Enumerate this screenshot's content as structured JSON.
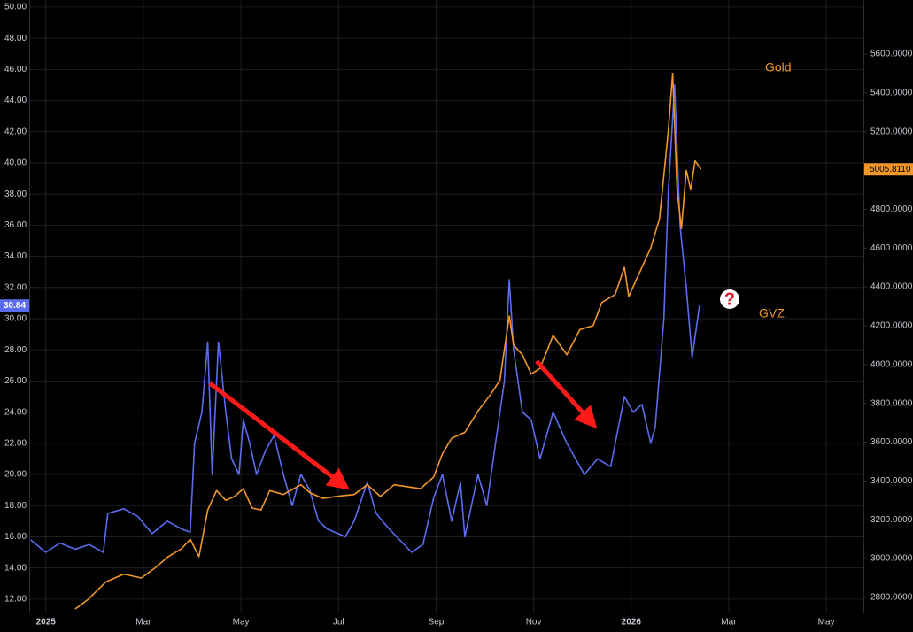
{
  "chart_data": {
    "type": "line",
    "annotations": {
      "gold_label": "Gold",
      "gvz_label": "GVZ",
      "question_mark": "?",
      "gvz_last": "30.84",
      "gold_last": "5005.8110"
    },
    "xlim": [
      -0.34,
      16.76
    ],
    "xticks": [
      {
        "value": 0,
        "label": "2025"
      },
      {
        "value": 2,
        "label": "Mar"
      },
      {
        "value": 4,
        "label": "May"
      },
      {
        "value": 6,
        "label": "Jul"
      },
      {
        "value": 8,
        "label": "Sep"
      },
      {
        "value": 10,
        "label": "Nov"
      },
      {
        "value": 12,
        "label": "2026"
      },
      {
        "value": 14,
        "label": "Mar"
      },
      {
        "value": 16,
        "label": "May"
      }
    ],
    "ylim": [
      11.14,
      50.45
    ],
    "yticks": [
      {
        "value": 12,
        "label": "12.00"
      },
      {
        "value": 14,
        "label": "14.00"
      },
      {
        "value": 16,
        "label": "16.00"
      },
      {
        "value": 18,
        "label": "18.00"
      },
      {
        "value": 20,
        "label": "20.00"
      },
      {
        "value": 22,
        "label": "22.00"
      },
      {
        "value": 24,
        "label": "24.00"
      },
      {
        "value": 26,
        "label": "26.00"
      },
      {
        "value": 28,
        "label": "28.00"
      },
      {
        "value": 30,
        "label": "30.00"
      },
      {
        "value": 32,
        "label": "32.00"
      },
      {
        "value": 34,
        "label": "34.00"
      },
      {
        "value": 36,
        "label": "36.00"
      },
      {
        "value": 38,
        "label": "38.00"
      },
      {
        "value": 40,
        "label": "40.00"
      },
      {
        "value": 42,
        "label": "42.00"
      },
      {
        "value": 44,
        "label": "44.00"
      },
      {
        "value": 46,
        "label": "46.00"
      },
      {
        "value": 48,
        "label": "48.00"
      },
      {
        "value": 50,
        "label": "50.00"
      }
    ],
    "y2lim": [
      2722,
      5878
    ],
    "y2ticks": [
      {
        "value": 2800,
        "label": "2800.0000"
      },
      {
        "value": 3000,
        "label": "3000.0000"
      },
      {
        "value": 3200,
        "label": "3200.0000"
      },
      {
        "value": 3400,
        "label": "3400.0000"
      },
      {
        "value": 3600,
        "label": "3600.0000"
      },
      {
        "value": 3800,
        "label": "3800.0000"
      },
      {
        "value": 4000,
        "label": "4000.0000"
      },
      {
        "value": 4200,
        "label": "4200.0000"
      },
      {
        "value": 4400,
        "label": "4400.0000"
      },
      {
        "value": 4600,
        "label": "4600.0000"
      },
      {
        "value": 4800,
        "label": "4800.0000"
      },
      {
        "value": 5000,
        "label": "5000.0000"
      },
      {
        "value": 5200,
        "label": "5200.0000"
      },
      {
        "value": 5400,
        "label": "5400.0000"
      },
      {
        "value": 5600,
        "label": "5600.0000"
      }
    ],
    "grid": true,
    "series": [
      {
        "name": "GVZ",
        "color": "#5b6cf0",
        "axis": "y",
        "x": [
          -0.31,
          0,
          0.29,
          0.6,
          0.89,
          1.18,
          1.27,
          1.6,
          1.89,
          2.18,
          2.49,
          2.78,
          2.96,
          3.05,
          3.2,
          3.32,
          3.41,
          3.54,
          3.69,
          3.81,
          3.96,
          4.05,
          4.18,
          4.32,
          4.5,
          4.68,
          4.87,
          5.05,
          5.23,
          5.41,
          5.59,
          5.77,
          6.14,
          6.32,
          6.59,
          6.77,
          7.04,
          7.5,
          7.73,
          7.95,
          8.13,
          8.32,
          8.5,
          8.59,
          8.86,
          9.04,
          9.22,
          9.4,
          9.5,
          9.59,
          9.77,
          9.95,
          10.13,
          10.4,
          10.68,
          11.04,
          11.31,
          11.58,
          11.86,
          12.04,
          12.22,
          12.4,
          12.49,
          12.67,
          12.76,
          12.89,
          13.0,
          13.13,
          13.25,
          13.4
        ],
        "values": [
          15.8,
          15.0,
          15.6,
          15.2,
          15.5,
          15.0,
          17.5,
          17.8,
          17.3,
          16.2,
          17.0,
          16.5,
          16.3,
          22,
          24,
          28.5,
          20,
          28.5,
          24,
          21,
          20,
          23.5,
          22,
          20,
          21.5,
          22.5,
          20,
          18,
          20,
          19,
          17,
          16.5,
          16,
          17,
          19.5,
          17.5,
          16.5,
          15,
          15.5,
          18.5,
          20,
          17,
          19.5,
          16,
          20,
          18,
          22,
          26,
          32.5,
          28,
          24,
          23.5,
          21,
          24,
          22,
          20,
          21,
          20.5,
          25,
          24,
          24.5,
          22,
          23,
          30,
          38,
          45,
          36,
          32,
          27.5,
          30.84
        ]
      },
      {
        "name": "Gold",
        "color": "#f0962a",
        "axis": "y2",
        "x": [
          0.6,
          0.87,
          1.23,
          1.6,
          1.96,
          2.23,
          2.51,
          2.78,
          2.96,
          3.14,
          3.32,
          3.5,
          3.69,
          3.87,
          4.05,
          4.23,
          4.41,
          4.59,
          4.87,
          5.23,
          5.41,
          5.68,
          5.95,
          6.32,
          6.59,
          6.86,
          7.14,
          7.41,
          7.68,
          7.95,
          8.13,
          8.32,
          8.59,
          8.86,
          9.13,
          9.31,
          9.5,
          9.59,
          9.77,
          9.95,
          10.13,
          10.4,
          10.68,
          10.95,
          11.22,
          11.4,
          11.67,
          11.86,
          11.95,
          12.13,
          12.4,
          12.58,
          12.76,
          12.85,
          12.94,
          13.03,
          13.13,
          13.22,
          13.31,
          13.43
        ],
        "values": [
          2740,
          2790,
          2880,
          2920,
          2900,
          2950,
          3010,
          3050,
          3100,
          3010,
          3250,
          3350,
          3300,
          3320,
          3360,
          3260,
          3250,
          3350,
          3330,
          3380,
          3340,
          3310,
          3320,
          3330,
          3380,
          3320,
          3380,
          3370,
          3360,
          3420,
          3540,
          3620,
          3650,
          3760,
          3850,
          3920,
          4250,
          4100,
          4050,
          3950,
          3980,
          4150,
          4050,
          4180,
          4200,
          4320,
          4360,
          4500,
          4350,
          4450,
          4600,
          4750,
          5200,
          5500,
          4900,
          4700,
          5000,
          4900,
          5050,
          5005.811
        ]
      }
    ]
  }
}
